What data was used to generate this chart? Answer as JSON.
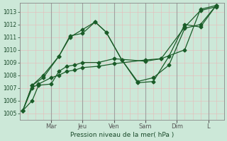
{
  "xlabel": "Pression niveau de la mer( hPa )",
  "background_color": "#cce8d8",
  "grid_major_color": "#e8b8b8",
  "grid_minor_color": "#e8b8b8",
  "line_color": "#1a5c28",
  "ylim": [
    1004.5,
    1013.7
  ],
  "yticks": [
    1005,
    1006,
    1007,
    1008,
    1009,
    1010,
    1011,
    1012,
    1013
  ],
  "day_tick_positions": [
    2,
    4,
    6,
    8,
    10,
    12
  ],
  "day_labels": [
    "Mar",
    "Jeu",
    "Ven",
    "Sam",
    "Dim",
    "L"
  ],
  "xlim": [
    0,
    13
  ],
  "lines": [
    {
      "x": [
        0.2,
        0.8,
        1.2,
        2.0,
        2.5,
        3.0,
        3.5,
        4.0,
        5.0,
        6.0,
        8.0,
        9.0,
        10.5,
        11.5,
        12.5
      ],
      "y": [
        1005.2,
        1006.0,
        1007.2,
        1007.3,
        1008.3,
        1008.7,
        1008.8,
        1009.0,
        1009.0,
        1009.3,
        1009.1,
        1009.3,
        1011.8,
        1013.1,
        1013.4
      ]
    },
    {
      "x": [
        0.2,
        0.8,
        1.2,
        2.0,
        2.5,
        3.0,
        3.5,
        4.0,
        5.0,
        6.0,
        8.0,
        9.0,
        10.5,
        11.5,
        12.5
      ],
      "y": [
        1005.2,
        1007.0,
        1007.3,
        1007.8,
        1008.0,
        1008.3,
        1008.4,
        1008.6,
        1008.7,
        1008.9,
        1009.2,
        1009.3,
        1010.0,
        1013.2,
        1013.5
      ]
    },
    {
      "x": [
        0.2,
        0.8,
        1.5,
        2.5,
        3.2,
        4.0,
        4.8,
        5.5,
        6.5,
        7.5,
        8.5,
        9.5,
        10.5,
        11.5,
        12.5
      ],
      "y": [
        1005.2,
        1007.2,
        1007.8,
        1009.5,
        1011.0,
        1011.6,
        1012.2,
        1011.4,
        1009.2,
        1007.5,
        1007.8,
        1008.8,
        1011.7,
        1012.0,
        1013.5
      ]
    },
    {
      "x": [
        0.2,
        0.8,
        1.5,
        2.5,
        3.2,
        4.0,
        4.8,
        5.5,
        6.5,
        7.5,
        8.5,
        9.5,
        10.5,
        11.5,
        12.5
      ],
      "y": [
        1005.2,
        1007.2,
        1008.0,
        1009.5,
        1011.1,
        1011.3,
        1012.2,
        1011.4,
        1009.2,
        1007.4,
        1007.5,
        1009.5,
        1012.0,
        1011.8,
        1013.5
      ]
    }
  ]
}
